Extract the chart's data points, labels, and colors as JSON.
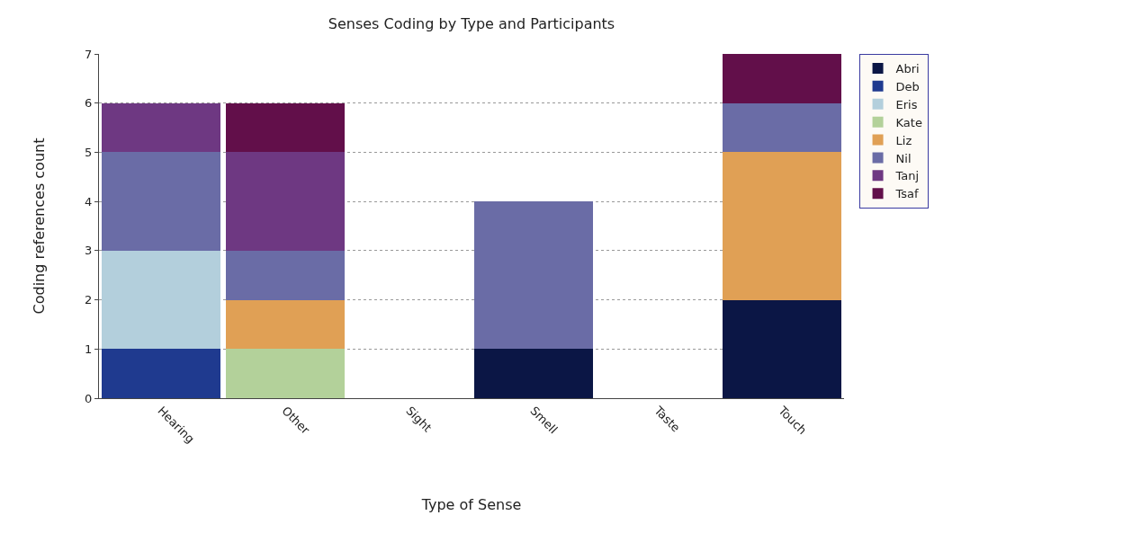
{
  "chart_data": {
    "type": "bar",
    "title": "Senses Coding by Type and Participants",
    "xlabel": "Type of Sense",
    "ylabel": "Coding references count",
    "categories": [
      "Hearing",
      "Other",
      "Sight",
      "Smell",
      "Taste",
      "Touch"
    ],
    "stacked": true,
    "ylim": [
      0,
      7
    ],
    "yticks": [
      0,
      1,
      2,
      3,
      4,
      5,
      6,
      7
    ],
    "grid": "y",
    "legend": "right",
    "series": [
      {
        "name": "Abri",
        "color": "#0b1645",
        "values": [
          0,
          0,
          0,
          1,
          0,
          2
        ]
      },
      {
        "name": "Deb",
        "color": "#1f3a8f",
        "values": [
          1,
          0,
          0,
          0,
          0,
          0
        ]
      },
      {
        "name": "Eris",
        "color": "#b3cfdc",
        "values": [
          2,
          0,
          0,
          0,
          0,
          0
        ]
      },
      {
        "name": "Kate",
        "color": "#b3d19a",
        "values": [
          0,
          1,
          0,
          0,
          0,
          0
        ]
      },
      {
        "name": "Liz",
        "color": "#e0a055",
        "values": [
          0,
          1,
          0,
          0,
          0,
          3
        ]
      },
      {
        "name": "Nil",
        "color": "#6a6ca6",
        "values": [
          2,
          1,
          0,
          3,
          0,
          1
        ]
      },
      {
        "name": "Tanj",
        "color": "#6e3882",
        "values": [
          1,
          2,
          0,
          0,
          0,
          0
        ]
      },
      {
        "name": "Tsaf",
        "color": "#620f4a",
        "values": [
          0,
          1,
          0,
          0,
          0,
          1
        ]
      }
    ]
  }
}
